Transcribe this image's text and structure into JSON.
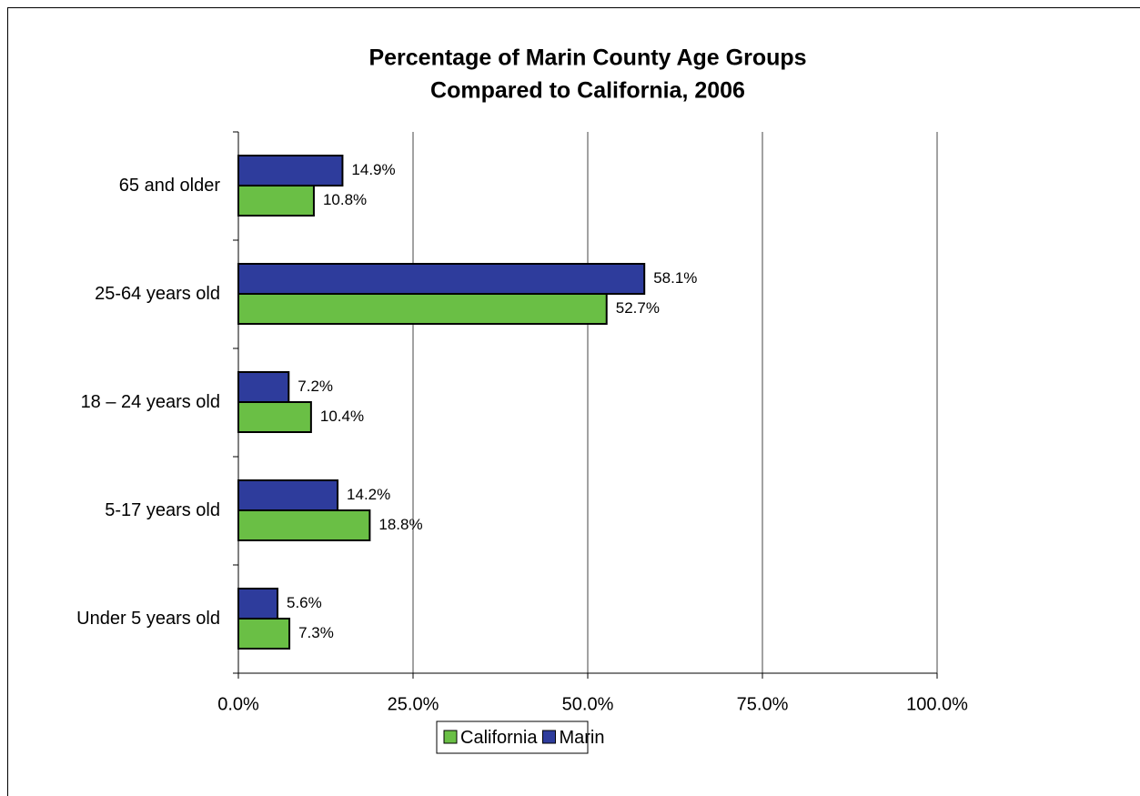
{
  "chart_data": {
    "type": "hbar",
    "title": [
      "Percentage of Marin County Age Groups",
      "Compared to California, 2006"
    ],
    "categories": [
      "65 and older",
      "25-64 years old",
      "18 – 24 years old",
      "5-17 years old",
      "Under 5 years old"
    ],
    "series": [
      {
        "name": "California",
        "color": "#6abf45",
        "values": [
          10.8,
          52.7,
          10.4,
          18.8,
          7.3
        ],
        "value_labels": [
          "10.8%",
          "52.7%",
          "10.4%",
          "18.8%",
          "7.3%"
        ]
      },
      {
        "name": "Marin",
        "color": "#2e3c9c",
        "values": [
          14.9,
          58.1,
          7.2,
          14.2,
          5.6
        ],
        "value_labels": [
          "14.9%",
          "58.1%",
          "7.2%",
          "14.2%",
          "5.6%"
        ]
      }
    ],
    "xlim": [
      0,
      100
    ],
    "xticks": [
      {
        "value": 0,
        "label": "0.0%"
      },
      {
        "value": 25,
        "label": "25.0%"
      },
      {
        "value": 50,
        "label": "50.0%"
      },
      {
        "value": 75,
        "label": "75.0%"
      },
      {
        "value": 100,
        "label": "100.0%"
      }
    ],
    "grid": true,
    "legend": "bottom"
  }
}
